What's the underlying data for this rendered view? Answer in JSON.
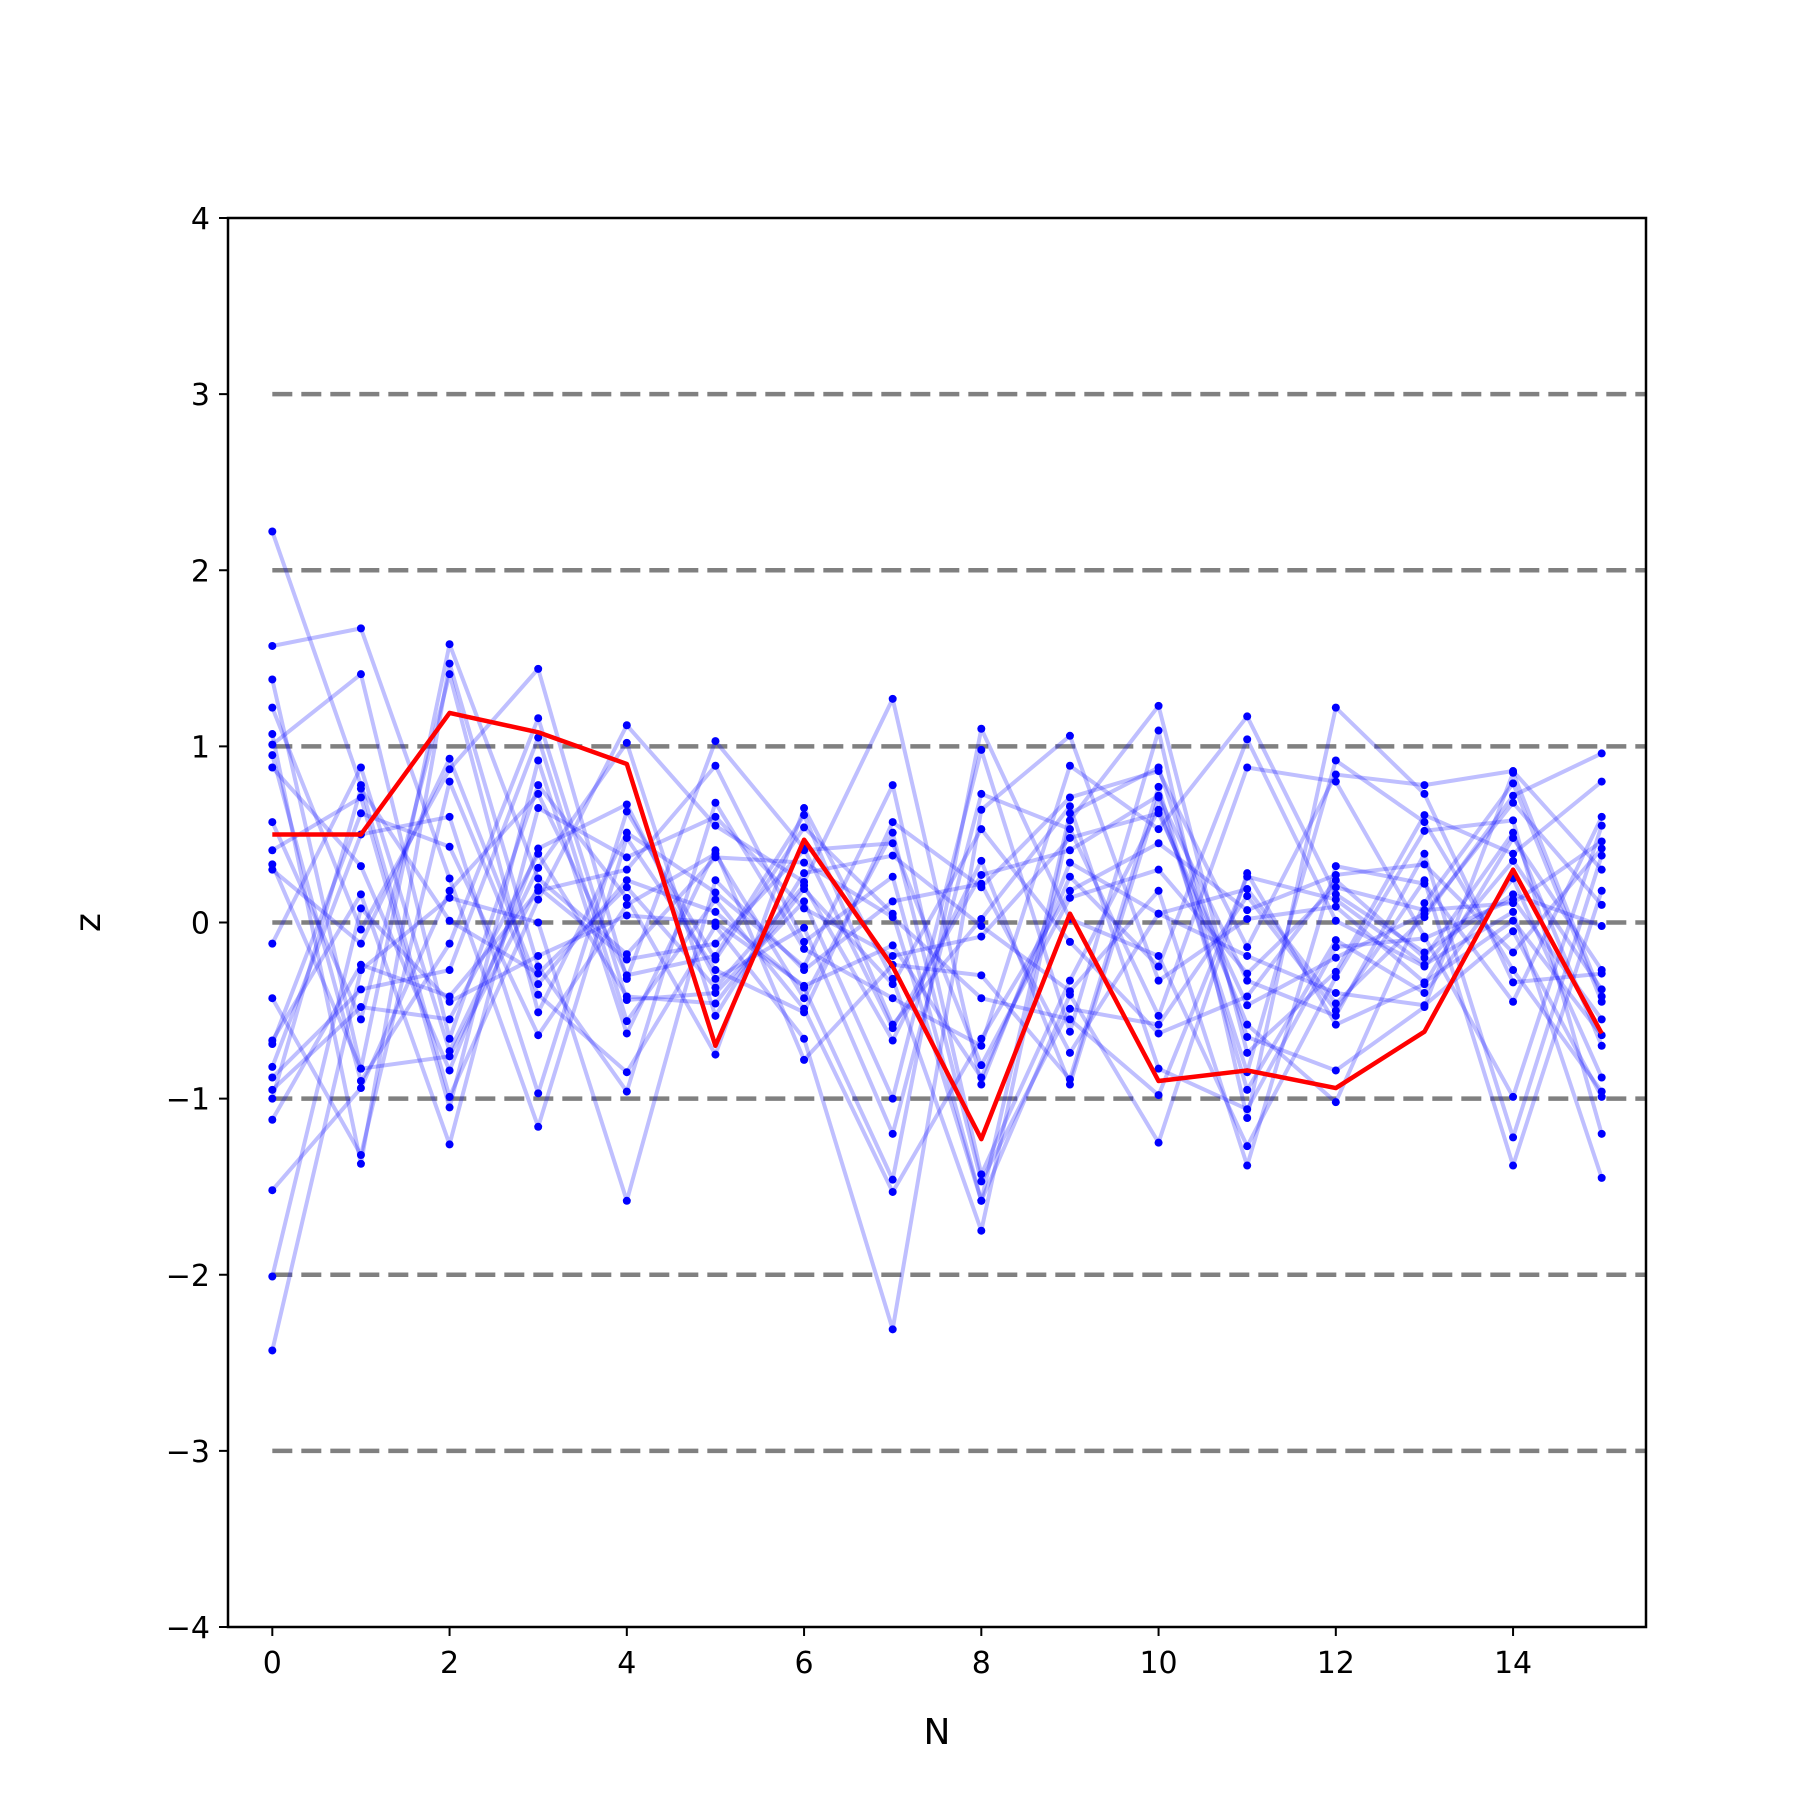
{
  "chart_data": {
    "type": "line",
    "title": "",
    "xlabel": "N",
    "ylabel": "z",
    "xlim": [
      -0.5,
      15.5
    ],
    "ylim": [
      -4,
      4
    ],
    "xticks": [
      0,
      2,
      4,
      6,
      8,
      10,
      12,
      14
    ],
    "xtick_labels": [
      "0",
      "2",
      "4",
      "6",
      "8",
      "10",
      "12",
      "14"
    ],
    "yticks": [
      -4,
      -3,
      -2,
      -1,
      0,
      1,
      2,
      3,
      4
    ],
    "ytick_labels": [
      "−4",
      "−3",
      "−2",
      "−1",
      "0",
      "1",
      "2",
      "3",
      "4"
    ],
    "reference_lines": [
      -3,
      -2,
      -1,
      0,
      1,
      2,
      3
    ],
    "grid": false,
    "legend": "none",
    "x": [
      0,
      1,
      2,
      3,
      4,
      5,
      6,
      7,
      8,
      9,
      10,
      11,
      12,
      13,
      14,
      15
    ],
    "highlight_series": {
      "values": [
        0.5,
        0.5,
        1.19,
        1.08,
        0.9,
        -0.7,
        0.47,
        -0.25,
        -1.23,
        0.05,
        -0.9,
        -0.84,
        -0.94,
        -0.62,
        0.3,
        -0.63
      ]
    },
    "background_series": [
      {
        "values": [
          2.22,
          0.78,
          -0.99,
          0.13,
          1.12,
          0.55,
          0.23,
          1.27,
          -0.92,
          0.34,
          0.05,
          0.19,
          -0.46,
          0.03,
          0.72,
          0.96
        ]
      },
      {
        "values": [
          1.57,
          1.67,
          0.25,
          -1.16,
          0.48,
          -0.27,
          -0.51,
          0.57,
          0.2,
          0.71,
          0.86,
          -0.14,
          0.84,
          0.78,
          0.86,
          0.3
        ]
      },
      {
        "values": [
          1.38,
          -0.83,
          1.58,
          0.25,
          -0.18,
          0.37,
          0.34,
          0.03,
          -0.43,
          -0.55,
          -0.98,
          0.26,
          0.13,
          -0.24,
          0.06,
          -1.45
        ]
      },
      {
        "values": [
          1.22,
          -0.04,
          0.87,
          1.44,
          -0.32,
          1.03,
          0.42,
          -0.6,
          0.27,
          0.41,
          0.72,
          -0.33,
          -0.53,
          0.39,
          -1.22,
          0.38
        ]
      },
      {
        "values": [
          1.07,
          -1.37,
          1.47,
          -0.25,
          -0.96,
          0.68,
          -0.15,
          -0.43,
          -0.7,
          0.89,
          0.53,
          1.17,
          0.16,
          -0.17,
          0.16,
          -0.02
        ]
      },
      {
        "values": [
          1.01,
          1.41,
          -0.66,
          0.78,
          0.14,
          -0.75,
          0.65,
          -0.32,
          -1.75,
          0.58,
          1.23,
          -0.74,
          -0.28,
          0.61,
          0.39,
          0.8
        ]
      },
      {
        "values": [
          0.95,
          -0.9,
          -0.12,
          1.16,
          -0.44,
          -0.4,
          0.12,
          -1.0,
          0.98,
          -0.62,
          1.09,
          -1.11,
          1.22,
          0.73,
          -0.34,
          -0.29
        ]
      },
      {
        "values": [
          0.88,
          0.32,
          -0.84,
          0.42,
          0.67,
          -0.32,
          -0.03,
          -1.2,
          0.73,
          0.53,
          -0.53,
          0.88,
          0.8,
          -0.08,
          -0.99,
          0.55
        ]
      },
      {
        "values": [
          0.57,
          -0.55,
          1.41,
          -0.51,
          0.51,
          0.17,
          -0.25,
          0.78,
          -1.43,
          -0.33,
          0.64,
          -0.58,
          -1.02,
          0.11,
          0.79,
          -0.45
        ]
      },
      {
        "values": [
          0.41,
          0.71,
          -1.05,
          0.92,
          -0.63,
          0.41,
          -0.78,
          -0.24,
          -0.3,
          -0.89,
          0.77,
          -0.95,
          -0.1,
          -0.4,
          0.25,
          -0.88
        ]
      },
      {
        "values": [
          0.3,
          -0.12,
          0.93,
          -0.35,
          0.24,
          0.06,
          -0.37,
          -1.46,
          1.1,
          0.02,
          -0.19,
          -1.27,
          -0.31,
          0.52,
          0.58,
          -1.2
        ]
      },
      {
        "values": [
          -0.12,
          0.88,
          -0.73,
          0.31,
          1.02,
          -0.53,
          0.28,
          0.38,
          -0.02,
          -0.39,
          0.18,
          -1.38,
          0.32,
          0.22,
          -0.45,
          0.6
        ]
      },
      {
        "values": [
          -0.43,
          -1.32,
          0.8,
          -0.41,
          -0.85,
          -0.02,
          -0.66,
          -2.31,
          0.64,
          1.06,
          -0.33,
          0.02,
          0.09,
          -0.34,
          0.01,
          -0.64
        ]
      },
      {
        "values": [
          -0.67,
          0.16,
          -1.26,
          0.65,
          0.37,
          0.6,
          0.08,
          -0.19,
          -0.08,
          0.48,
          0.62,
          -0.47,
          -0.2,
          0.05,
          0.68,
          0.1
        ]
      },
      {
        "values": [
          -0.82,
          0.5,
          0.6,
          -0.97,
          0.63,
          -0.21,
          0.54,
          0.05,
          -1.58,
          0.62,
          0.88,
          -0.65,
          -0.84,
          -0.48,
          0.85,
          -0.42
        ]
      },
      {
        "values": [
          -0.88,
          -0.38,
          -0.27,
          1.05,
          -0.56,
          0.13,
          -0.49,
          -1.53,
          -0.66,
          0.18,
          0.45,
          0.07,
          0.27,
          0.33,
          -0.17,
          0.42
        ]
      },
      {
        "values": [
          -1.0,
          0.76,
          0.01,
          -0.29,
          0.2,
          -0.37,
          0.21,
          -0.67,
          0.35,
          -0.92,
          0.71,
          -0.85,
          0.92,
          0.57,
          -0.27,
          -0.96
        ]
      },
      {
        "values": [
          -1.12,
          -0.24,
          -0.42,
          0.18,
          0.3,
          0.89,
          -0.11,
          0.26,
          -1.58,
          -0.41,
          -1.25,
          0.28,
          -0.58,
          -0.35,
          0.48,
          -0.27
        ]
      },
      {
        "values": [
          -1.52,
          -0.94,
          0.18,
          0.73,
          -0.3,
          -0.19,
          0.61,
          -0.58,
          0.02,
          0.66,
          -0.83,
          -1.06,
          -0.14,
          -0.09,
          0.13,
          -0.55
        ]
      },
      {
        "values": [
          -2.01,
          0.08,
          -0.45,
          -0.19,
          0.04,
          0.0,
          -0.36,
          -0.13,
          -0.88,
          0.26,
          -0.25,
          1.04,
          0.01,
          -0.25,
          0.35,
          -0.38
        ]
      },
      {
        "values": [
          -2.43,
          -0.27,
          0.14,
          0.0,
          -1.58,
          0.24,
          -0.27,
          0.12,
          0.22,
          -0.74,
          0.05,
          -0.19,
          -0.4,
          -0.47,
          -0.05,
          -0.99
        ]
      },
      {
        "values": [
          0.33,
          -0.83,
          -0.76,
          0.2,
          -0.21,
          -0.12,
          0.41,
          0.45,
          -0.81,
          0.14,
          0.3,
          -0.29,
          0.2,
          0.07,
          0.11,
          0.46
        ]
      },
      {
        "values": [
          -0.69,
          0.62,
          0.43,
          -0.64,
          0.1,
          0.39,
          -0.43,
          0.51,
          -1.47,
          -0.49,
          -0.58,
          0.15,
          -0.5,
          0.24,
          -1.38,
          0.18
        ]
      },
      {
        "values": [
          -0.95,
          -0.48,
          -0.55,
          0.39,
          -0.42,
          -0.46,
          0.19,
          -0.35,
          0.53,
          -0.11,
          -0.63,
          -0.42,
          0.24,
          -0.2,
          0.51,
          -0.7
        ]
      }
    ]
  }
}
